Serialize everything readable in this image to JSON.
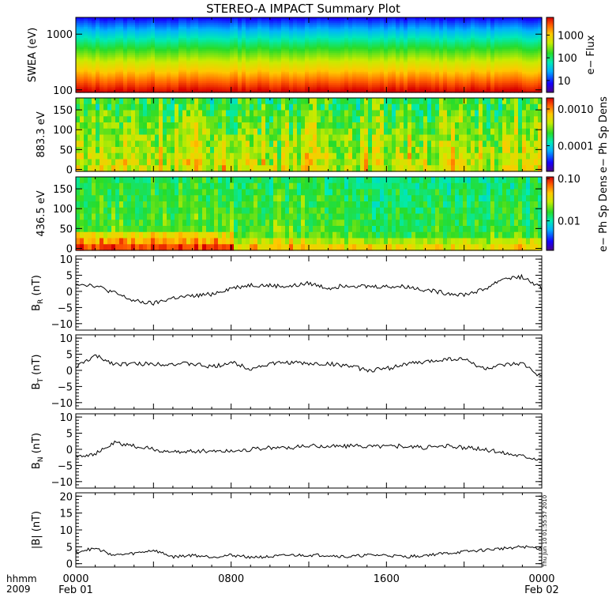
{
  "chart_data": [
    {
      "type": "heatmap",
      "title": "STEREO-A IMPACT Summary Plot",
      "ylabel": "SWEA (eV)",
      "yscale": "log",
      "ylim": [
        90,
        2000
      ],
      "yticks": [
        "1000",
        "100"
      ],
      "colorbar": {
        "label": "e− Flux",
        "scale": "log",
        "ticks": [
          "1000",
          "100",
          "10"
        ],
        "range": [
          3,
          6000
        ]
      },
      "description_bands": {
        "energy": [
          100,
          200,
          400,
          800,
          1200,
          1600
        ],
        "level": [
          0.95,
          0.7,
          0.5,
          0.25,
          0.05,
          0.02
        ]
      }
    },
    {
      "type": "heatmap",
      "ylabel": "883.3 eV",
      "ylim": [
        -5,
        180
      ],
      "yticks": [
        "150",
        "100",
        "50",
        "0"
      ],
      "colorbar": {
        "label": "e− Ph Sp Dens",
        "scale": "log",
        "ticks": [
          "0.0010",
          "0.0001"
        ],
        "range": [
          2e-05,
          0.002
        ]
      }
    },
    {
      "type": "heatmap",
      "ylabel": "436.5 eV",
      "ylim": [
        -5,
        180
      ],
      "yticks": [
        "150",
        "100",
        "50",
        "0"
      ],
      "colorbar": {
        "label": "e− Ph Sp Dens",
        "scale": "log",
        "ticks": [
          "0.10",
          "0.01"
        ],
        "range": [
          0.002,
          0.11
        ]
      }
    },
    {
      "type": "line",
      "ylabel_main": "B",
      "ylabel_sub": "R",
      "ylabel_unit": " (nT)",
      "ylim": [
        -12,
        11
      ],
      "yticks": [
        "10",
        "5",
        "0",
        "−5",
        "−10"
      ],
      "x": [
        0,
        1,
        2,
        3,
        4,
        5,
        6,
        7,
        8,
        9,
        10,
        11,
        12,
        13,
        14,
        15,
        16,
        17,
        18,
        19,
        20,
        21,
        22,
        23,
        24
      ],
      "values": [
        2.5,
        1.8,
        -0.5,
        -3.0,
        -3.8,
        -2.0,
        -1.5,
        -0.8,
        1.0,
        2.0,
        1.8,
        1.5,
        2.5,
        1.0,
        2.0,
        1.5,
        1.5,
        1.5,
        0.5,
        -0.5,
        -1.0,
        0.5,
        4.0,
        4.5,
        0.8
      ]
    },
    {
      "type": "line",
      "ylabel_main": "B",
      "ylabel_sub": "T",
      "ylabel_unit": " (nT)",
      "ylim": [
        -12,
        11
      ],
      "yticks": [
        "10",
        "5",
        "0",
        "−5",
        "−10"
      ],
      "x": [
        0,
        1,
        2,
        3,
        4,
        5,
        6,
        7,
        8,
        9,
        10,
        11,
        12,
        13,
        14,
        15,
        16,
        17,
        18,
        19,
        20,
        21,
        22,
        23,
        24
      ],
      "values": [
        1.0,
        4.5,
        2.0,
        2.0,
        2.0,
        2.0,
        2.0,
        1.0,
        2.5,
        0.5,
        2.0,
        2.5,
        2.0,
        2.0,
        1.5,
        0.0,
        0.5,
        2.0,
        2.5,
        3.5,
        3.5,
        0.5,
        1.5,
        2.0,
        -2.0
      ]
    },
    {
      "type": "line",
      "ylabel_main": "B",
      "ylabel_sub": "N",
      "ylabel_unit": " (nT)",
      "ylim": [
        -12,
        11
      ],
      "yticks": [
        "10",
        "5",
        "0",
        "−5",
        "−10"
      ],
      "x": [
        0,
        1,
        2,
        3,
        4,
        5,
        6,
        7,
        8,
        9,
        10,
        11,
        12,
        13,
        14,
        15,
        16,
        17,
        18,
        19,
        20,
        21,
        22,
        23,
        24
      ],
      "values": [
        -2.0,
        -1.5,
        2.0,
        1.0,
        0.0,
        -1.0,
        -0.5,
        -0.5,
        -0.5,
        0.0,
        0.5,
        0.5,
        1.0,
        1.0,
        1.0,
        1.0,
        1.0,
        1.0,
        0.5,
        1.0,
        0.5,
        0.0,
        -1.0,
        -2.0,
        -3.0
      ]
    },
    {
      "type": "line",
      "ylabel_main": "|B|",
      "ylabel_sub": "",
      "ylabel_unit": " (nT)",
      "ylim": [
        -1,
        21
      ],
      "yticks": [
        "20",
        "15",
        "10",
        "5",
        "0"
      ],
      "x": [
        0,
        1,
        2,
        3,
        4,
        5,
        6,
        7,
        8,
        9,
        10,
        11,
        12,
        13,
        14,
        15,
        16,
        17,
        18,
        19,
        20,
        21,
        22,
        23,
        24
      ],
      "values": [
        3.5,
        4.5,
        2.5,
        3.0,
        4.0,
        2.0,
        2.5,
        2.0,
        2.5,
        2.0,
        2.0,
        2.5,
        2.5,
        2.5,
        2.0,
        2.5,
        2.5,
        2.0,
        2.5,
        3.0,
        3.5,
        4.0,
        4.5,
        5.0,
        4.5
      ]
    }
  ],
  "x_axis": {
    "labels": [
      {
        "hour": 0,
        "time": "0000",
        "date": "Feb 01"
      },
      {
        "hour": 8,
        "time": "0800",
        "date": ""
      },
      {
        "hour": 16,
        "time": "1600",
        "date": ""
      },
      {
        "hour": 24,
        "time": "0000",
        "date": "Feb 02"
      }
    ],
    "corner_top": "hhmm",
    "corner_bottom": "2009",
    "xlim": [
      0,
      24
    ]
  },
  "timestamp": "Thu Jun 10 01:55:57 2010"
}
